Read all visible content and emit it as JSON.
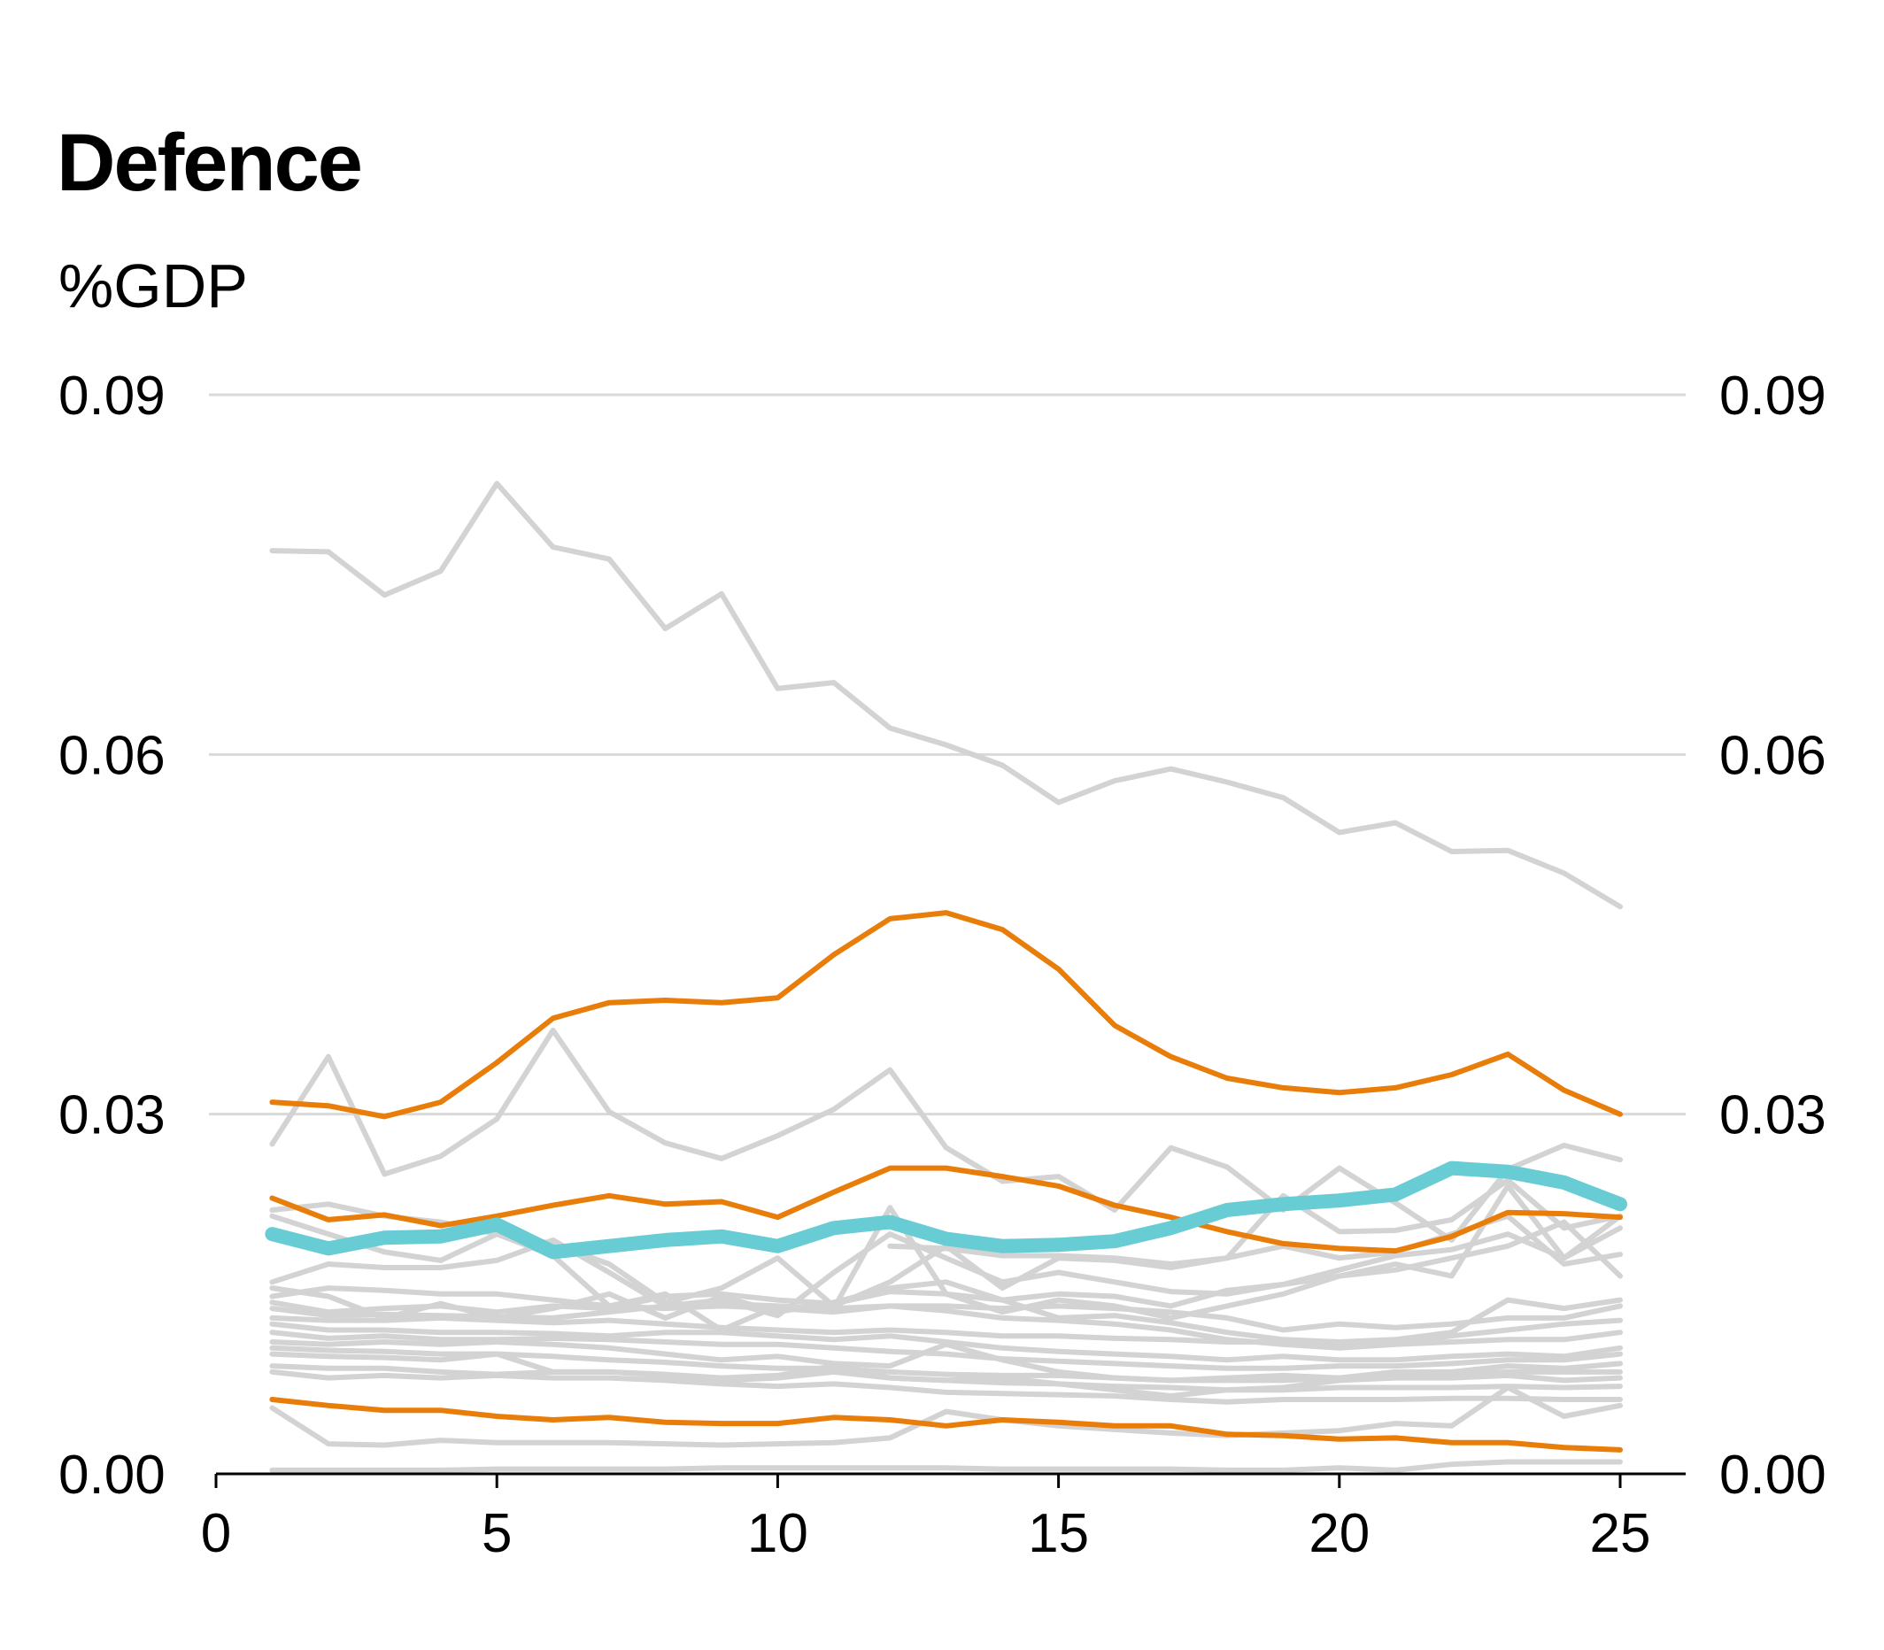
{
  "chart_data": {
    "type": "line",
    "title": "Defence",
    "subtitle": "%GDP",
    "xlabel": "",
    "ylabel": "%GDP",
    "xlim": [
      0,
      26.5
    ],
    "ylim": [
      0,
      0.09
    ],
    "x_ticks": [
      0,
      5,
      10,
      15,
      20,
      25
    ],
    "x_tick_labels": [
      "0",
      "5",
      "10",
      "15",
      "20",
      "25"
    ],
    "y_ticks": [
      0,
      0.03,
      0.06,
      0.09
    ],
    "y_tick_labels": [
      "0.00",
      "0.03",
      "0.06",
      "0.09"
    ],
    "right_axis_labels": true,
    "grid": "horizontal",
    "legend": "none",
    "colors": {
      "background": "#d3d3d3",
      "highlight": "#e87d0a",
      "focus": "#68ccd4",
      "axis": "#000000",
      "grid": "#d9d9d9"
    },
    "x": [
      1,
      2,
      3,
      4,
      5,
      6,
      7,
      8,
      9,
      10,
      11,
      12,
      13,
      14,
      15,
      16,
      17,
      18,
      19,
      20,
      21,
      22,
      23,
      24,
      25
    ],
    "series": [
      {
        "group": "background",
        "values": [
          0.077,
          0.0769,
          0.0733,
          0.0753,
          0.0826,
          0.0773,
          0.0763,
          0.0705,
          0.0734,
          0.0655,
          0.066,
          0.0622,
          0.0608,
          0.0591,
          0.056,
          0.0578,
          0.0588,
          0.0577,
          0.0564,
          0.0535,
          0.0543,
          0.0519,
          0.052,
          0.0501,
          0.0473
        ]
      },
      {
        "group": "background",
        "values": [
          0.0275,
          0.0348,
          0.025,
          0.0265,
          0.0296,
          0.037,
          0.0302,
          0.0276,
          0.0263,
          0.0282,
          0.0304,
          0.0337,
          0.0272,
          0.0244,
          0.0248,
          0.022,
          0.0272,
          0.0256,
          0.022,
          0.0255,
          0.0226,
          0.0195,
          0.0254,
          0.0274,
          0.0262
        ]
      },
      {
        "group": "background",
        "values": [
          0.022,
          0.0225,
          0.0215,
          0.021,
          0.02,
          0.0192,
          0.0175,
          0.0143,
          0.0155,
          0.018,
          0.014,
          0.016,
          0.019,
          0.0155,
          0.018,
          0.0178,
          0.0172,
          0.018,
          0.0232,
          0.0202,
          0.0203,
          0.0212,
          0.0245,
          0.0205,
          0.0215
        ]
      },
      {
        "group": "background",
        "values": [
          0.0215,
          0.02,
          0.0185,
          0.0178,
          0.02,
          0.0182,
          0.014,
          0.015,
          0.012,
          0.014,
          0.0138,
          0.0222,
          0.015,
          0.0135,
          0.0145,
          0.014,
          0.013,
          0.014,
          0.015,
          0.0165,
          0.0175,
          0.0165,
          0.024,
          0.018,
          0.0215
        ]
      },
      {
        "group": "background",
        "values": [
          null,
          null,
          null,
          null,
          null,
          null,
          null,
          null,
          null,
          null,
          null,
          0.019,
          0.0188,
          0.0182,
          0.0182,
          0.018,
          0.0175,
          0.018,
          0.019,
          0.018,
          0.0185,
          0.02,
          0.0215,
          0.0175,
          0.0183
        ]
      },
      {
        "group": "background",
        "values": [
          0.016,
          0.0175,
          0.0172,
          0.0172,
          0.0178,
          0.0195,
          0.0168,
          0.014,
          0.0145,
          0.0132,
          0.0168,
          0.02,
          0.018,
          0.016,
          0.0168,
          0.016,
          0.0152,
          0.015,
          0.0158,
          0.017,
          0.0182,
          0.0187,
          0.02,
          0.018,
          0.0205
        ]
      },
      {
        "group": "background",
        "values": [
          0.0155,
          0.0148,
          0.013,
          0.0142,
          0.013,
          0.0138,
          0.015,
          0.013,
          0.0148,
          0.0135,
          0.0143,
          0.0155,
          0.016,
          0.0145,
          0.015,
          0.0148,
          0.014,
          0.0153,
          0.0158,
          0.0165,
          0.017,
          0.018,
          0.019,
          0.021,
          0.0165
        ]
      },
      {
        "group": "background",
        "values": [
          0.0148,
          0.0155,
          0.0153,
          0.015,
          0.015,
          0.0145,
          0.014,
          0.0138,
          0.014,
          0.0138,
          0.0135,
          0.014,
          0.014,
          0.0138,
          0.014,
          0.0138,
          0.0135,
          0.013,
          0.012,
          0.0125,
          0.0122,
          0.0125,
          0.013,
          0.013,
          0.014
        ]
      },
      {
        "group": "background",
        "values": [
          0.0143,
          0.0135,
          0.0138,
          0.014,
          0.0135,
          0.014,
          0.0138,
          0.0148,
          0.015,
          0.0145,
          0.0142,
          0.0152,
          0.015,
          0.0145,
          0.013,
          0.0132,
          0.0126,
          0.0118,
          0.0112,
          0.011,
          0.0112,
          0.0118,
          0.0145,
          0.0138,
          0.0145
        ]
      },
      {
        "group": "background",
        "values": [
          0.0138,
          0.0132,
          0.0133,
          0.0132,
          0.0131,
          0.013,
          0.0135,
          0.014,
          0.0142,
          0.014,
          0.0138,
          0.014,
          0.0136,
          0.013,
          0.0128,
          0.0125,
          0.012,
          0.0112,
          0.0108,
          0.0105,
          0.0108,
          0.0115,
          0.012,
          0.0125,
          0.0128
        ]
      },
      {
        "group": "background",
        "values": [
          0.013,
          0.0128,
          0.0128,
          0.013,
          0.0128,
          0.0126,
          0.0128,
          0.0125,
          0.0122,
          0.012,
          0.0118,
          0.012,
          0.0118,
          0.0115,
          0.0115,
          0.0113,
          0.0112,
          0.011,
          0.011,
          0.0108,
          0.0108,
          0.011,
          0.0112,
          0.0112,
          0.0118
        ]
      },
      {
        "group": "background",
        "values": [
          0.0125,
          0.012,
          0.012,
          0.0118,
          0.0118,
          0.0117,
          0.0115,
          0.0118,
          0.0118,
          0.0115,
          0.0112,
          0.0115,
          0.011,
          0.0105,
          0.0102,
          0.01,
          0.0098,
          0.0095,
          0.0098,
          0.0095,
          0.0095,
          0.0098,
          0.01,
          0.0098,
          0.0105
        ]
      },
      {
        "group": "background",
        "values": [
          0.0118,
          0.0113,
          0.0115,
          0.0112,
          0.0112,
          0.0113,
          0.0112,
          0.011,
          0.0108,
          0.0108,
          0.0105,
          0.0102,
          0.01,
          0.0096,
          0.0094,
          0.0092,
          0.009,
          0.0088,
          0.0088,
          0.009,
          0.009,
          0.0092,
          0.0095,
          0.0095,
          0.01
        ]
      },
      {
        "group": "background",
        "values": [
          0.011,
          0.0108,
          0.011,
          0.0108,
          0.011,
          0.0108,
          0.0105,
          0.01,
          0.0095,
          0.0098,
          0.0092,
          0.009,
          0.0108,
          0.0095,
          0.0085,
          0.008,
          0.0078,
          0.008,
          0.0082,
          0.008,
          0.0085,
          0.0085,
          0.009,
          0.0088,
          0.0092
        ]
      },
      {
        "group": "background",
        "values": [
          0.0105,
          0.0103,
          0.0102,
          0.01,
          0.01,
          0.0098,
          0.0095,
          0.0093,
          0.009,
          0.0088,
          0.0088,
          0.0085,
          0.0083,
          0.0082,
          0.0082,
          0.008,
          0.0078,
          0.0078,
          0.0078,
          0.008,
          0.0082,
          0.0083,
          0.0085,
          0.0085,
          0.0085
        ]
      },
      {
        "group": "background",
        "values": [
          0.01,
          0.0098,
          0.0097,
          0.0095,
          0.01,
          0.0085,
          0.0085,
          0.0083,
          0.008,
          0.0082,
          0.009,
          0.008,
          0.0078,
          0.008,
          0.0075,
          0.007,
          0.0065,
          0.007,
          0.0072,
          0.0078,
          0.008,
          0.008,
          0.0082,
          0.0078,
          0.008
        ]
      },
      {
        "group": "background",
        "values": [
          0.009,
          0.0088,
          0.0088,
          0.0085,
          0.0083,
          0.0085,
          0.0085,
          0.0082,
          0.0078,
          0.008,
          0.0085,
          0.008,
          0.0078,
          0.0076,
          0.0075,
          0.0073,
          0.0072,
          0.007,
          0.007,
          0.0072,
          0.0072,
          0.0072,
          0.0073,
          0.0072,
          0.0073
        ]
      },
      {
        "group": "background",
        "values": [
          0.0085,
          0.008,
          0.0082,
          0.008,
          0.0082,
          0.008,
          0.008,
          0.0078,
          0.0075,
          0.0073,
          0.0075,
          0.0072,
          0.0068,
          0.0067,
          0.0066,
          0.0065,
          0.0062,
          0.006,
          0.0062,
          0.0062,
          0.0062,
          0.0063,
          0.0063,
          0.0062,
          0.0062
        ]
      },
      {
        "group": "background",
        "values": [
          0.0055,
          0.0025,
          0.0024,
          0.0028,
          0.0026,
          0.0026,
          0.0026,
          0.0025,
          0.0024,
          0.0025,
          0.0026,
          0.003,
          0.0052,
          0.0045,
          0.004,
          0.0037,
          0.0034,
          0.0032,
          0.0034,
          0.0036,
          0.0042,
          0.004,
          0.0072,
          0.0048,
          0.0057
        ]
      },
      {
        "group": "background",
        "values": [
          0.0003,
          0.0003,
          0.0003,
          0.0003,
          0.0004,
          0.0004,
          0.0004,
          0.0004,
          0.0005,
          0.0005,
          0.0005,
          0.0005,
          0.0005,
          0.0004,
          0.0004,
          0.0004,
          0.0004,
          0.0003,
          0.0003,
          0.0005,
          0.0003,
          0.0008,
          0.001,
          0.001,
          0.001
        ]
      },
      {
        "group": "highlight",
        "values": [
          0.031,
          0.0307,
          0.0298,
          0.031,
          0.0343,
          0.038,
          0.0393,
          0.0395,
          0.0393,
          0.0397,
          0.0433,
          0.0463,
          0.0468,
          0.0454,
          0.0421,
          0.0374,
          0.0348,
          0.033,
          0.0322,
          0.0318,
          0.0322,
          0.0333,
          0.035,
          0.032,
          0.03
        ]
      },
      {
        "group": "highlight",
        "values": [
          0.023,
          0.0212,
          0.0216,
          0.0207,
          0.0215,
          0.0224,
          0.0232,
          0.0225,
          0.0227,
          0.0214,
          0.0235,
          0.0255,
          0.0255,
          0.0248,
          0.024,
          0.0224,
          0.0214,
          0.0202,
          0.0192,
          0.0188,
          0.0186,
          0.0198,
          0.0218,
          0.0217,
          0.0214
        ]
      },
      {
        "group": "highlight",
        "values": [
          0.0062,
          0.0057,
          0.0053,
          0.0053,
          0.0048,
          0.0045,
          0.0047,
          0.0043,
          0.0042,
          0.0042,
          0.0047,
          0.0045,
          0.004,
          0.0045,
          0.0043,
          0.004,
          0.004,
          0.0033,
          0.0032,
          0.0029,
          0.003,
          0.0026,
          0.0026,
          0.0022,
          0.002
        ]
      },
      {
        "group": "focus",
        "values": [
          0.02,
          0.0188,
          0.0197,
          0.0198,
          0.0208,
          0.0185,
          0.019,
          0.0195,
          0.0198,
          0.019,
          0.0205,
          0.021,
          0.0196,
          0.019,
          0.0191,
          0.0194,
          0.0205,
          0.022,
          0.0225,
          0.0228,
          0.0233,
          0.0255,
          0.0252,
          0.0243,
          0.0225
        ]
      }
    ]
  }
}
